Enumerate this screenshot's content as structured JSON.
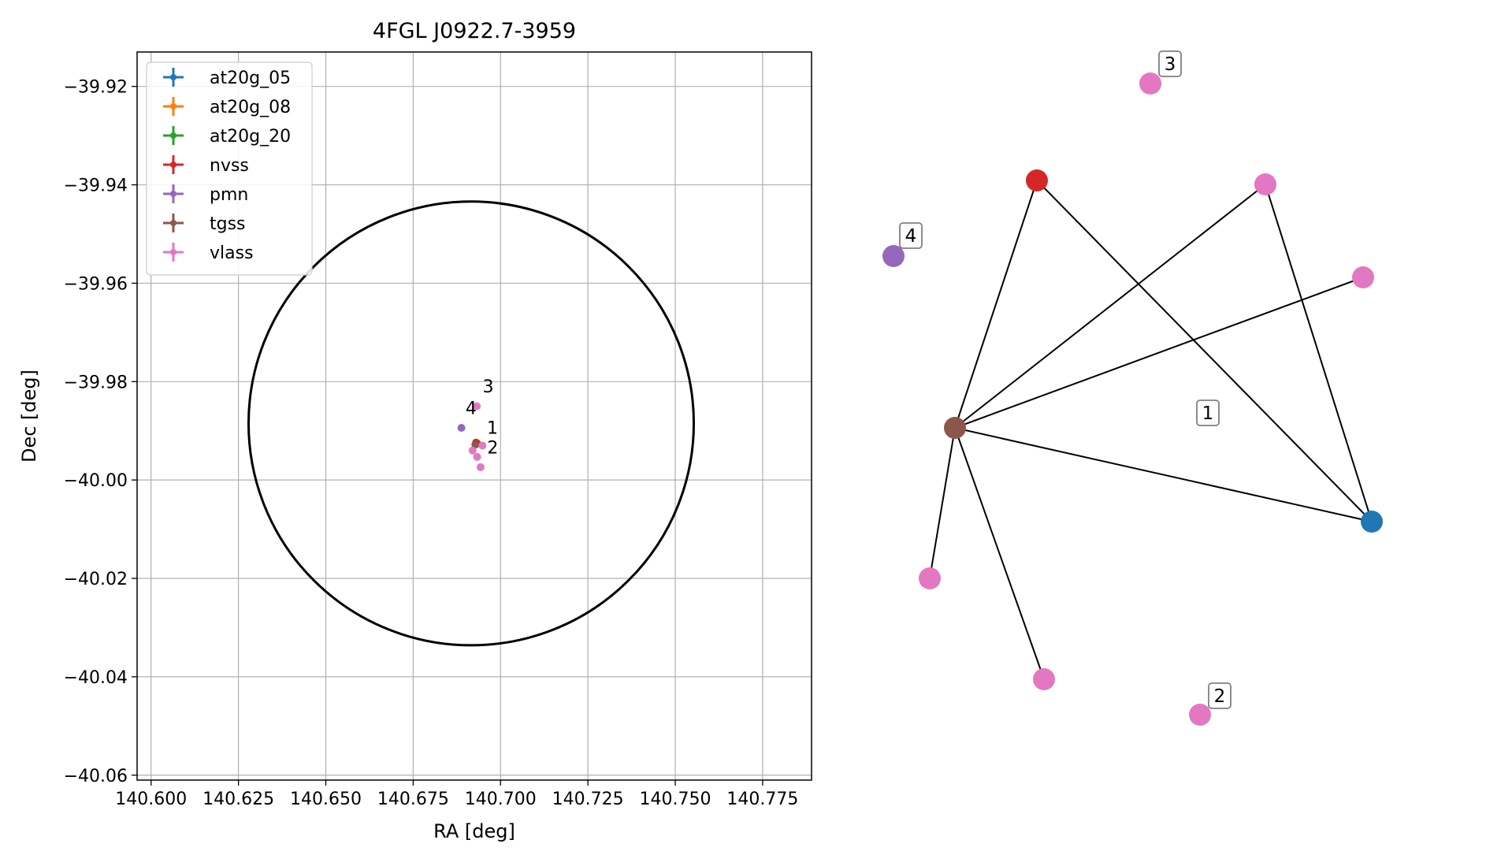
{
  "chart_data": [
    {
      "type": "scatter",
      "title": "4FGL J0922.7-3959",
      "xlabel": "RA [deg]",
      "ylabel": "Dec [deg]",
      "xlim": [
        140.596,
        140.789
      ],
      "ylim": [
        -40.061,
        -39.913
      ],
      "grid": true,
      "legend_position": "top-left",
      "xticks": [
        140.6,
        140.625,
        140.65,
        140.675,
        140.7,
        140.725,
        140.75,
        140.775
      ],
      "xtick_labels": [
        "140.600",
        "140.625",
        "140.650",
        "140.675",
        "140.700",
        "140.725",
        "140.750",
        "140.775"
      ],
      "yticks": [
        -39.92,
        -39.94,
        -39.96,
        -39.98,
        -40.0,
        -40.02,
        -40.04,
        -40.06
      ],
      "ytick_labels": [
        "−39.92",
        "−39.94",
        "−39.96",
        "−39.98",
        "−40.00",
        "−40.02",
        "−40.04",
        "−40.06"
      ],
      "circle": {
        "center": [
          140.6916,
          -39.9885
        ],
        "radius_ra": 0.0637,
        "radius_dec": 0.0451,
        "color": "#000000"
      },
      "series": [
        {
          "name": "at20g_05",
          "color": "#1f77b4",
          "points": [
            [
              140.6933,
              -39.9926
            ]
          ]
        },
        {
          "name": "at20g_08",
          "color": "#ff7f0e",
          "points": [
            [
              140.6933,
              -39.9926
            ]
          ]
        },
        {
          "name": "at20g_20",
          "color": "#2ca02c",
          "points": [
            [
              140.6933,
              -39.9926
            ]
          ]
        },
        {
          "name": "nvss",
          "color": "#d62728",
          "points": [
            [
              140.693,
              -39.9924
            ]
          ]
        },
        {
          "name": "pmn",
          "color": "#9467bd",
          "points": [
            [
              140.6888,
              -39.9894
            ]
          ]
        },
        {
          "name": "tgss",
          "color": "#8c564b",
          "points": [
            [
              140.6928,
              -39.9928
            ]
          ]
        },
        {
          "name": "vlass",
          "color": "#e377c2",
          "points": [
            [
              140.6932,
              -39.985
            ],
            [
              140.6948,
              -39.993
            ],
            [
              140.692,
              -39.994
            ],
            [
              140.6933,
              -39.9953
            ],
            [
              140.6943,
              -39.9974
            ]
          ]
        }
      ],
      "annotations": [
        {
          "text": "3",
          "x": 140.6949,
          "y": -39.9822
        },
        {
          "text": "4",
          "x": 140.69,
          "y": -39.9866
        },
        {
          "text": "1",
          "x": 140.6961,
          "y": -39.9906
        },
        {
          "text": "2",
          "x": 140.6962,
          "y": -39.9946
        }
      ]
    },
    {
      "type": "network",
      "nodes": [
        {
          "id": "n-tgss",
          "survey": "tgss",
          "color": "#8c564b"
        },
        {
          "id": "n-nvss",
          "survey": "nvss",
          "color": "#d62728"
        },
        {
          "id": "n-pmn",
          "survey": "pmn",
          "color": "#9467bd",
          "label": "4"
        },
        {
          "id": "n-at20g",
          "survey": "at20g",
          "color": "#1f77b4"
        },
        {
          "id": "n-vlass-top",
          "survey": "vlass",
          "color": "#e377c2",
          "label": "3"
        },
        {
          "id": "n-vlass-a",
          "survey": "vlass",
          "color": "#e377c2"
        },
        {
          "id": "n-vlass-b",
          "survey": "vlass",
          "color": "#e377c2"
        },
        {
          "id": "n-vlass-c",
          "survey": "vlass",
          "color": "#e377c2"
        },
        {
          "id": "n-vlass-d",
          "survey": "vlass",
          "color": "#e377c2"
        },
        {
          "id": "n-vlass-bottom",
          "survey": "vlass",
          "color": "#e377c2",
          "label": "2"
        }
      ],
      "edges": [
        [
          "n-tgss",
          "n-nvss"
        ],
        [
          "n-tgss",
          "n-vlass-a"
        ],
        [
          "n-tgss",
          "n-vlass-b"
        ],
        [
          "n-tgss",
          "n-at20g"
        ],
        [
          "n-tgss",
          "n-vlass-c"
        ],
        [
          "n-tgss",
          "n-vlass-d"
        ],
        [
          "n-nvss",
          "n-at20g"
        ],
        [
          "n-vlass-a",
          "n-at20g"
        ]
      ],
      "labels": [
        "1"
      ]
    }
  ]
}
